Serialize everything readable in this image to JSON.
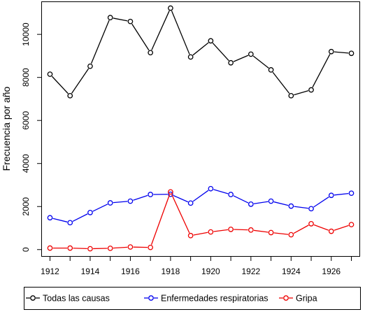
{
  "chart_data": {
    "type": "line",
    "title": "",
    "xlabel": "",
    "ylabel": "Frecuencia por año",
    "xlim": [
      1911.6,
      1927.4
    ],
    "ylim": [
      -300,
      11500
    ],
    "x_ticks": [
      1912,
      1914,
      1916,
      1918,
      1920,
      1922,
      1924,
      1926
    ],
    "y_ticks": [
      0,
      2000,
      4000,
      6000,
      8000,
      10000
    ],
    "grid": false,
    "legend_position": "bottom",
    "x": [
      1912,
      1913,
      1914,
      1915,
      1916,
      1917,
      1918,
      1919,
      1920,
      1921,
      1922,
      1923,
      1924,
      1925,
      1926,
      1927
    ],
    "series": [
      {
        "name": "Todas las causas",
        "color": "#000000",
        "values": [
          8150,
          7150,
          8520,
          10780,
          10600,
          9150,
          11220,
          8950,
          9700,
          8680,
          9080,
          8350,
          7150,
          7420,
          9200,
          9120
        ]
      },
      {
        "name": "Enfermedades respiratorias",
        "color": "#0000ee",
        "values": [
          1480,
          1250,
          1720,
          2170,
          2250,
          2560,
          2570,
          2160,
          2830,
          2560,
          2110,
          2250,
          2020,
          1900,
          2520,
          2620
        ]
      },
      {
        "name": "Gripa",
        "color": "#ee0000",
        "values": [
          70,
          70,
          40,
          60,
          120,
          100,
          2680,
          650,
          820,
          940,
          910,
          790,
          690,
          1200,
          850,
          1160
        ]
      }
    ]
  }
}
